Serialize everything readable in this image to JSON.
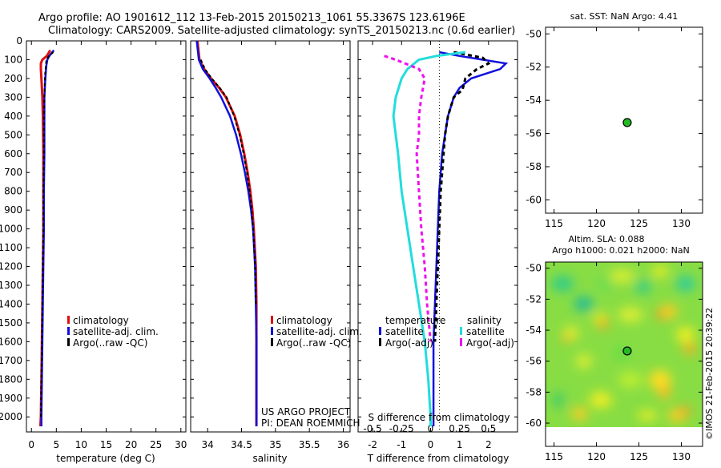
{
  "header": {
    "line1": "Argo profile: AO 1901612_112 13-Feb-2015 20150213_1061 55.3367S 123.6196E",
    "line2": "Climatology: CARS2009. Satellite-adjusted climatology: synTS_20150213.nc (0.6d earlier)"
  },
  "watermark": "©IMOS 21-Feb-2015 20:39:22",
  "project": {
    "line1": "US ARGO PROJECT",
    "line2": "PI: DEAN ROEMMICH"
  },
  "colors": {
    "climatology": "#dd1010",
    "satellite": "#1010dd",
    "argo": "#000000",
    "satellite_s": "#22dddd",
    "argo_s": "#ee11ee"
  },
  "chart_data": [
    {
      "id": "temperature",
      "type": "line",
      "xlabel": "temperature (deg C)",
      "xlim": [
        -1,
        31
      ],
      "xticks": [
        0,
        5,
        10,
        15,
        20,
        25,
        30
      ],
      "ylim": [
        0,
        2080
      ],
      "yticks": [
        0,
        100,
        200,
        300,
        400,
        500,
        600,
        700,
        800,
        900,
        1000,
        1100,
        1200,
        1300,
        1400,
        1500,
        1600,
        1700,
        1800,
        1900,
        2000
      ],
      "legend": [
        "climatology",
        "satellite-adj. clim.",
        "Argo(..raw -QC)"
      ],
      "series": [
        {
          "name": "climatology",
          "depth": [
            50,
            80,
            100,
            120,
            150,
            200,
            300,
            400,
            600,
            800,
            1000,
            1200,
            1400,
            1600,
            1800,
            2000,
            2050
          ],
          "values": [
            3.8,
            3.1,
            2.2,
            1.9,
            1.9,
            2.0,
            2.2,
            2.3,
            2.4,
            2.4,
            2.4,
            2.3,
            2.2,
            2.1,
            2.0,
            1.9,
            1.8
          ]
        },
        {
          "name": "satellite-adj. clim.",
          "depth": [
            50,
            80,
            100,
            130,
            160,
            200,
            300,
            400,
            600,
            800,
            1000,
            1200,
            1400,
            1600,
            1800,
            2000,
            2050
          ],
          "values": [
            4.5,
            3.6,
            3.2,
            3.0,
            2.9,
            2.8,
            2.6,
            2.6,
            2.6,
            2.5,
            2.5,
            2.4,
            2.3,
            2.2,
            2.1,
            2.0,
            2.0
          ]
        },
        {
          "name": "Argo(..raw -QC)",
          "depth": [
            60,
            80,
            100,
            130,
            160,
            200,
            300,
            400,
            600,
            800,
            1000,
            1200,
            1400,
            1600,
            1800,
            2000
          ],
          "values": [
            4.4,
            3.5,
            3.0,
            2.9,
            2.8,
            2.7,
            2.6,
            2.5,
            2.5,
            2.4,
            2.4,
            2.3,
            2.2,
            2.1,
            2.0,
            1.9
          ]
        }
      ]
    },
    {
      "id": "salinity",
      "type": "line",
      "xlabel": "salinity",
      "xlim": [
        33.75,
        36.1
      ],
      "xticks": [
        34,
        34.5,
        35,
        35.5,
        36
      ],
      "ylim": [
        0,
        2080
      ],
      "legend": [
        "climatology",
        "satellite-adj. clim.",
        "Argo(..raw -QC)"
      ],
      "series": [
        {
          "name": "climatology",
          "depth": [
            0,
            100,
            150,
            200,
            250,
            300,
            400,
            500,
            600,
            700,
            800,
            900,
            1000,
            1200,
            1400,
            1600,
            1800,
            2000,
            2050
          ],
          "values": [
            33.85,
            33.88,
            33.95,
            34.05,
            34.17,
            34.27,
            34.4,
            34.48,
            34.54,
            34.59,
            34.63,
            34.66,
            34.68,
            34.71,
            34.72,
            34.72,
            34.72,
            34.72,
            34.72
          ]
        },
        {
          "name": "satellite-adj. clim.",
          "depth": [
            0,
            100,
            150,
            200,
            250,
            300,
            400,
            500,
            600,
            700,
            800,
            900,
            1000,
            1200,
            1400,
            1600,
            1800,
            2000,
            2050
          ],
          "values": [
            33.84,
            33.87,
            33.93,
            34.03,
            34.12,
            34.2,
            34.33,
            34.42,
            34.49,
            34.55,
            34.6,
            34.64,
            34.67,
            34.7,
            34.71,
            34.72,
            34.72,
            34.72,
            34.72
          ]
        },
        {
          "name": "Argo(..raw -QC)",
          "depth": [
            100,
            150,
            200,
            250,
            300,
            400,
            500,
            600,
            700,
            800,
            900,
            1000,
            1200,
            1400
          ],
          "values": [
            33.9,
            33.96,
            34.06,
            34.18,
            34.28,
            34.39,
            34.47,
            34.53,
            34.58,
            34.62,
            34.65,
            34.67,
            34.7,
            34.71
          ]
        }
      ]
    },
    {
      "id": "difference",
      "type": "line",
      "xlabel": "T difference from climatology",
      "xlabel_top": "S difference from climatology",
      "xlim": [
        -2.5,
        3
      ],
      "xticks": [
        -2,
        -1,
        0,
        1,
        2
      ],
      "xticks_top": [
        "-0.5",
        "-0.25",
        "0",
        "0.25",
        "0.5"
      ],
      "ylim": [
        0,
        2080
      ],
      "legend_groups": [
        {
          "title": "temperature",
          "items": [
            "satellite",
            "Argo(-adj)"
          ]
        },
        {
          "title": "salinity",
          "items": [
            "satellite",
            "Argo(-adj)"
          ]
        }
      ],
      "series": [
        {
          "name": "temperature satellite",
          "depth": [
            60,
            80,
            100,
            120,
            150,
            180,
            200,
            250,
            300,
            400,
            500,
            600,
            800,
            1000,
            1200,
            1400,
            1600,
            1800,
            2000,
            2050
          ],
          "values": [
            0.3,
            1.0,
            1.8,
            2.6,
            2.4,
            1.8,
            1.4,
            1.0,
            0.8,
            0.6,
            0.5,
            0.4,
            0.3,
            0.25,
            0.2,
            0.15,
            0.1,
            0.1,
            0.1,
            0.1
          ]
        },
        {
          "name": "temperature Argo(-adj)",
          "depth": [
            60,
            90,
            120,
            150,
            200,
            260,
            300,
            400,
            500,
            600,
            800,
            1000,
            1200,
            1400,
            1600
          ],
          "values": [
            0.8,
            1.8,
            2.0,
            1.6,
            1.2,
            1.1,
            0.8,
            0.6,
            0.5,
            0.45,
            0.35,
            0.3,
            0.25,
            0.2,
            0.15
          ]
        },
        {
          "name": "salinity satellite",
          "depth": [
            60,
            80,
            100,
            150,
            200,
            300,
            400,
            500,
            600,
            800,
            1000,
            1200,
            1400,
            1600,
            1800,
            2000,
            2050
          ],
          "values": [
            0.3,
            0.05,
            -0.1,
            -0.2,
            -0.25,
            -0.3,
            -0.32,
            -0.3,
            -0.28,
            -0.25,
            -0.2,
            -0.15,
            -0.1,
            -0.05,
            -0.02,
            0,
            0
          ]
        },
        {
          "name": "salinity Argo(-adj)",
          "depth": [
            80,
            100,
            150,
            200,
            300,
            400,
            500,
            600,
            800,
            1000,
            1200,
            1400,
            1600
          ],
          "values": [
            -0.4,
            -0.3,
            -0.1,
            -0.05,
            -0.08,
            -0.1,
            -0.1,
            -0.12,
            -0.1,
            -0.08,
            -0.05,
            -0.03,
            0
          ]
        }
      ]
    },
    {
      "id": "sst-map",
      "type": "scatter",
      "title": "sat. SST: NaN Argo: 4.41",
      "xlim": [
        114,
        132.5
      ],
      "xticks": [
        115,
        120,
        125,
        130
      ],
      "ylim": [
        -60.8,
        -49.6
      ],
      "yticks": [
        -50,
        -52,
        -54,
        -56,
        -58,
        -60
      ],
      "points": [
        {
          "x": 123.62,
          "y": -55.34
        }
      ]
    },
    {
      "id": "sla-map",
      "type": "heatmap",
      "title1": "Altim. SLA: 0.088",
      "title2": "Argo h1000: 0.021 h2000: NaN",
      "xlim": [
        114,
        132.5
      ],
      "xticks": [
        115,
        120,
        125,
        130
      ],
      "ylim": [
        -61.5,
        -49.6
      ],
      "yticks": [
        -50,
        -52,
        -54,
        -56,
        -58,
        -60
      ],
      "data_extent": {
        "x": [
          114,
          132.5
        ],
        "y": [
          -60,
          -49.6
        ]
      },
      "points": [
        {
          "x": 123.62,
          "y": -55.34
        }
      ]
    }
  ]
}
